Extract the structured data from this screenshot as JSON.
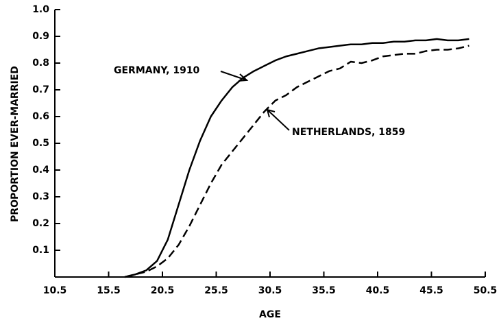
{
  "chart_data": {
    "type": "line",
    "x_label": "AGE",
    "y_label": "PROPORTION EVER-MARRIED",
    "x": [
      17,
      18,
      19,
      20,
      21,
      22,
      23,
      24,
      25,
      26,
      27,
      28,
      29,
      30,
      31,
      32,
      33,
      34,
      35,
      36,
      37,
      38,
      39,
      40,
      41,
      42,
      43,
      44,
      45,
      46,
      47,
      48,
      49
    ],
    "series": [
      {
        "name": "GERMANY, 1910",
        "color": "#000000",
        "style": "solid",
        "values": [
          0,
          0.01,
          0.025,
          0.06,
          0.14,
          0.27,
          0.4,
          0.51,
          0.6,
          0.66,
          0.71,
          0.745,
          0.77,
          0.79,
          0.81,
          0.825,
          0.835,
          0.845,
          0.855,
          0.86,
          0.865,
          0.87,
          0.87,
          0.875,
          0.875,
          0.88,
          0.88,
          0.885,
          0.885,
          0.89,
          0.885,
          0.885,
          0.89
        ]
      },
      {
        "name": "NETHERLANDS, 1859",
        "color": "#000000",
        "style": "dashed",
        "values": [
          0,
          0.01,
          0.02,
          0.04,
          0.07,
          0.12,
          0.19,
          0.27,
          0.35,
          0.42,
          0.47,
          0.52,
          0.57,
          0.62,
          0.66,
          0.68,
          0.71,
          0.73,
          0.75,
          0.77,
          0.78,
          0.805,
          0.8,
          0.81,
          0.825,
          0.83,
          0.835,
          0.835,
          0.845,
          0.85,
          0.85,
          0.855,
          0.865
        ]
      }
    ],
    "xlim": [
      10.5,
      50.5
    ],
    "xticks": [
      10.5,
      15.5,
      20.5,
      25.5,
      30.5,
      35.5,
      40.5,
      45.5,
      50.5
    ],
    "ylim": [
      0,
      1
    ],
    "yticks": [
      0.1,
      0.2,
      0.3,
      0.4,
      0.5,
      0.6,
      0.7,
      0.8,
      0.9,
      {
        "value": 1,
        "label": "1.0"
      }
    ],
    "grid": false
  }
}
